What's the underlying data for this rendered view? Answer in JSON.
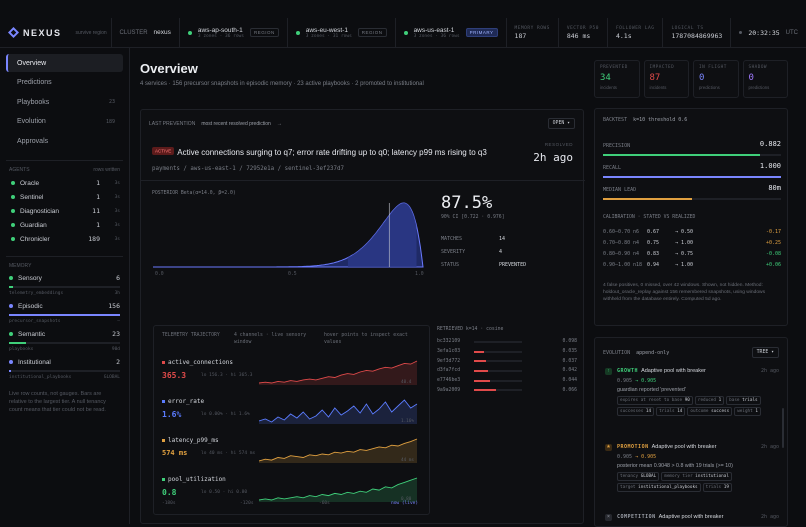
{
  "brand": {
    "name": "NEXUS",
    "subtitle": "survive region"
  },
  "topbar": {
    "cluster_label": "CLUSTER",
    "cluster_value": "nexus",
    "regions": [
      {
        "name": "aws-ap-south-1",
        "meta": "3 zones · 36 rows",
        "badge": "REGION"
      },
      {
        "name": "aws-eu-west-1",
        "meta": "3 zones · 31 rows",
        "badge": "REGION"
      },
      {
        "name": "aws-us-east-1",
        "meta": "3 zones · 36 rows",
        "badge": "PRIMARY"
      }
    ],
    "stats": [
      {
        "label": "MEMORY ROWS",
        "value": "187"
      },
      {
        "label": "VECTOR P50",
        "value": "846 ms"
      },
      {
        "label": "FOLLOWER LAG",
        "value": "4.1s"
      },
      {
        "label": "LOGICAL TS",
        "value": "1787084869963"
      }
    ],
    "clock": "20:32:35",
    "tz": "UTC"
  },
  "sidebar": {
    "nav": [
      {
        "label": "Overview",
        "count": ""
      },
      {
        "label": "Predictions",
        "count": ""
      },
      {
        "label": "Playbooks",
        "count": "23"
      },
      {
        "label": "Evolution",
        "count": "189"
      },
      {
        "label": "Approvals",
        "count": ""
      }
    ],
    "agents_title": "AGENTS",
    "agents_col": "rows written",
    "agents": [
      {
        "name": "Oracle",
        "n": "1",
        "w": "3s"
      },
      {
        "name": "Sentinel",
        "n": "1",
        "w": "3s"
      },
      {
        "name": "Diagnostician",
        "n": "11",
        "w": "3s"
      },
      {
        "name": "Guardian",
        "n": "1",
        "w": "3s"
      },
      {
        "name": "Chronicler",
        "n": "189",
        "w": "3s"
      }
    ],
    "memory_title": "MEMORY",
    "memory": [
      {
        "name": "Sensory",
        "count": "6",
        "sub": "telemetry_embeddings",
        "sub2": "3h",
        "color": "#3fcf7a",
        "frac": 0.04
      },
      {
        "name": "Episodic",
        "count": "156",
        "sub": "precursor_snapshots",
        "sub2": "—",
        "color": "#7a86ff",
        "frac": 1.0
      },
      {
        "name": "Semantic",
        "count": "23",
        "sub": "playbooks",
        "sub2": "90d",
        "color": "#3fcf7a",
        "frac": 0.15
      },
      {
        "name": "Institutional",
        "count": "2",
        "sub": "institutional_playbooks",
        "sub2": "GLOBAL",
        "color": "#7a86ff",
        "frac": 0.02
      }
    ],
    "note": "Live row counts, not gauges. Bars are relative to the largest tier. A null tenancy count means that tier could not be read."
  },
  "main": {
    "title": "Overview",
    "subtitle": "4 services · 156 precursor snapshots in episodic memory · 23 active playbooks · 2 promoted to institutional",
    "prev_label": "LAST PREVENTION",
    "prev_sub": "most recent resolved prediction",
    "prev_link": "→",
    "open_btn": "OPEN ▾",
    "tag": "ACTIVE",
    "headline": "Active connections surging to q7; error rate drifting up to q0; latency p99 ms rising to q3",
    "path": "payments / aws-us-east-1 / 72952e1a / sentinel-3ef237d7",
    "resolved_label": "RESOLVED",
    "resolved_value": "2h ago",
    "posterior_label": "POSTERIOR Beta(α=14.0, β=2.0)",
    "axis": [
      "0.0",
      "0.5",
      "1.0"
    ],
    "big": "87.5%",
    "ci": "90% CI [0.722 · 0.976]",
    "kv": [
      {
        "k": "MATCHES",
        "v": "14"
      },
      {
        "k": "SEVERITY",
        "v": "4"
      },
      {
        "k": "STATUS",
        "v": "PREVENTED"
      }
    ],
    "tel_title": "TELEMETRY TRAJECTORY",
    "tel_sub": "4 channels · live sensory window",
    "tel_hint": "hover points to inspect exact values",
    "channels": [
      {
        "name": "active_connections",
        "value": "365.3",
        "meta": "lo 156.3 · hi 365.3",
        "end": "40.4",
        "color": "#e04a4a",
        "vals": [
          10,
          11,
          10,
          12,
          11,
          13,
          12,
          14,
          15,
          14,
          16,
          18,
          17,
          20,
          22,
          21,
          24,
          26,
          25,
          28,
          30,
          29,
          32,
          35,
          34,
          38
        ]
      },
      {
        "name": "error_rate",
        "value": "1.6%",
        "meta": "lo 0.00% · hi 1.6%",
        "end": "1.16%",
        "color": "#5b7cff",
        "vals": [
          5,
          7,
          4,
          9,
          6,
          12,
          8,
          14,
          7,
          10,
          16,
          9,
          18,
          11,
          15,
          20,
          13,
          22,
          12,
          17,
          24,
          14,
          20,
          26,
          18,
          22
        ]
      },
      {
        "name": "latency_p99_ms",
        "value": "574 ms",
        "meta": "lo 40 ms · hi 574 ms",
        "end": "44 ms",
        "color": "#e0a040",
        "vals": [
          8,
          10,
          9,
          12,
          11,
          14,
          13,
          12,
          15,
          14,
          16,
          15,
          18,
          17,
          19,
          18,
          21,
          20,
          22,
          24,
          23,
          26,
          25,
          28,
          30,
          33
        ]
      },
      {
        "name": "pool_utilization",
        "value": "0.8",
        "meta": "lo 0.50 · hi 0.80",
        "end": "0.80",
        "color": "#3fcf7a",
        "vals": [
          10,
          11,
          10,
          12,
          11,
          12,
          13,
          12,
          14,
          13,
          15,
          14,
          16,
          15,
          17,
          16,
          18,
          17,
          20,
          19,
          22,
          21,
          24,
          26,
          28,
          30
        ]
      }
    ],
    "xaxis": [
      "-180s",
      "-120s",
      "-60s",
      "now (live)"
    ],
    "retr_title": "RETRIEVED k=14 · cosine",
    "retrieved": [
      {
        "id": "bc332109",
        "s": "0.098",
        "f": 0.0
      },
      {
        "id": "3efa1c03",
        "s": "0.035",
        "f": 0.2
      },
      {
        "id": "9ef3d772",
        "s": "0.037",
        "f": 0.25
      },
      {
        "id": "d3fa7fcd",
        "s": "0.042",
        "f": 0.3
      },
      {
        "id": "e7746be3",
        "s": "0.044",
        "f": 0.33
      },
      {
        "id": "9a9a2009",
        "s": "0.066",
        "f": 0.45
      }
    ]
  },
  "right": {
    "kpis": [
      {
        "label": "PREVENTED",
        "value": "34",
        "unit": "incidents",
        "color": "#3fcf7a"
      },
      {
        "label": "IMPACTED",
        "value": "87",
        "unit": "incidents",
        "color": "#e04a4a"
      },
      {
        "label": "IN FLIGHT",
        "value": "0",
        "unit": "predictions",
        "color": "#7a86ff"
      },
      {
        "label": "SHADOW",
        "value": "0",
        "unit": "predictions",
        "color": "#a07aff"
      }
    ],
    "bt_title": "BACKTEST",
    "bt_sub": "k=10 threshold 0.6",
    "bt": [
      {
        "label": "PRECISION",
        "value": "0.882",
        "frac": 0.88,
        "color": "#3fcf7a"
      },
      {
        "label": "RECALL",
        "value": "1.000",
        "frac": 1.0,
        "color": "#7a86ff"
      },
      {
        "label": "MEDIAN LEAD",
        "value": "80m",
        "frac": 0.5,
        "color": "#e0a040"
      }
    ],
    "cal_title": "CALIBRATION · STATED VS REALIZED",
    "calibration": [
      {
        "bin": "0.60–0.70",
        "n": "n6",
        "a": "0.67",
        "b": "→ 0.50",
        "d": "-0.17",
        "dc": "#e0a040"
      },
      {
        "bin": "0.70–0.80",
        "n": "n4",
        "a": "0.75",
        "b": "→ 1.00",
        "d": "+0.25",
        "dc": "#e0a040"
      },
      {
        "bin": "0.80–0.90",
        "n": "n4",
        "a": "0.83",
        "b": "→ 0.75",
        "d": "-0.08",
        "dc": "#3fcf7a"
      },
      {
        "bin": "0.90–1.00",
        "n": "n18",
        "a": "0.94",
        "b": "→ 1.00",
        "d": "+0.06",
        "dc": "#3fcf7a"
      }
    ],
    "bt_note": "4 false positives, 0 missed, over 42 windows. Shown, not hidden. Method: holdout_oracle_replay against 156 remembered snapshots, using windows withheld from the database entirely. Computed 5d ago.",
    "evo_title": "EVOLUTION",
    "evo_sub": "append-only",
    "tree_btn": "TREE ▾",
    "events": [
      {
        "kind": "GROWTH",
        "icon": "↑",
        "color": "#3fcf7a",
        "bg": "#163a24",
        "title": "Adaptive pool with breaker",
        "ago": "2h ago",
        "score_a": "0.905",
        "score_b": "→ 0.905",
        "note": "guardian reported 'prevented'",
        "chips": [
          {
            "k": "expires at reset to base",
            "v": "90"
          },
          {
            "k": "reduced",
            "v": "1"
          },
          {
            "k": "base",
            "v": "trials"
          },
          {
            "k": "successes",
            "v": "14"
          },
          {
            "k": "trials",
            "v": "14"
          },
          {
            "k": "outcome",
            "v": "success"
          },
          {
            "k": "weight",
            "v": "1"
          }
        ]
      },
      {
        "kind": "PROMOTION",
        "icon": "★",
        "color": "#e0a040",
        "bg": "#3a2a14",
        "title": "Adaptive pool with breaker",
        "ago": "2h ago",
        "score_a": "0.905",
        "score_b": "→ 0.905",
        "note": "posterior mean 0.9048 > 0.8 with 19 trials (>= 10)",
        "chips": [
          {
            "k": "tenancy",
            "v": "GLOBAL"
          },
          {
            "k": "memory tier",
            "v": "institutional"
          },
          {
            "k": "target",
            "v": "institutional_playbooks"
          },
          {
            "k": "trials",
            "v": "19"
          }
        ]
      },
      {
        "kind": "COMPETITION",
        "icon": "×",
        "color": "#9ca0a9",
        "bg": "#26282e",
        "title": "Adaptive pool with breaker",
        "ago": "2h ago",
        "score_a": "",
        "score_b": "",
        "note": "",
        "chips": []
      }
    ]
  }
}
